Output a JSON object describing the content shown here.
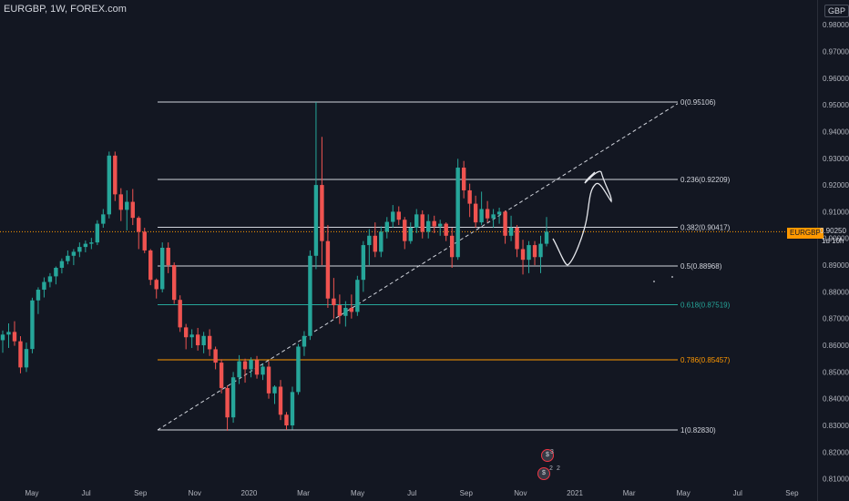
{
  "header": {
    "symbol_title": "EURGBP, 1W, FOREX.com",
    "currency": "GBP"
  },
  "price_tag": {
    "symbol": "EURGBP",
    "value": "0.90250",
    "countdown": "1d 10h"
  },
  "events": [
    {
      "icon": "currency-event-icon",
      "count": "3"
    },
    {
      "icon": "currency-event-icon",
      "count": "2"
    },
    {
      "icon": "currency-event-icon",
      "count": "2"
    }
  ],
  "colors": {
    "background": "#131722",
    "up": "#26a69a",
    "down": "#ef5350",
    "fib_white": "#d1d4dc",
    "fib_618": "#26a69a",
    "fib_786": "#ff9800",
    "price_line": "#ff9800"
  },
  "chart_data": {
    "type": "candlestick",
    "title": "EURGBP, 1W, FOREX.com",
    "ylabel": "GBP",
    "ylim": [
      0.8067,
      0.9863
    ],
    "y_ticks": [
      "0.98000",
      "0.97000",
      "0.96000",
      "0.95000",
      "0.94000",
      "0.93000",
      "0.92000",
      "0.91000",
      "0.90000",
      "0.89000",
      "0.88000",
      "0.87000",
      "0.86000",
      "0.85000",
      "0.84000",
      "0.83000",
      "0.82000",
      "0.81000"
    ],
    "x_ticks": [
      "May",
      "Jul",
      "Sep",
      "Nov",
      "2020",
      "Mar",
      "May",
      "Jul",
      "Sep",
      "Nov",
      "2021",
      "Mar",
      "May",
      "Jul",
      "Sep"
    ],
    "candles": [
      {
        "o": 0.8619,
        "h": 0.8655,
        "l": 0.8572,
        "c": 0.864
      },
      {
        "o": 0.864,
        "h": 0.8682,
        "l": 0.859,
        "c": 0.865
      },
      {
        "o": 0.865,
        "h": 0.869,
        "l": 0.8598,
        "c": 0.8615
      },
      {
        "o": 0.8615,
        "h": 0.8634,
        "l": 0.8495,
        "c": 0.8517
      },
      {
        "o": 0.8517,
        "h": 0.861,
        "l": 0.85,
        "c": 0.8586
      },
      {
        "o": 0.8586,
        "h": 0.8778,
        "l": 0.857,
        "c": 0.8768
      },
      {
        "o": 0.8768,
        "h": 0.8817,
        "l": 0.8717,
        "c": 0.8808
      },
      {
        "o": 0.8808,
        "h": 0.8854,
        "l": 0.8779,
        "c": 0.8837
      },
      {
        "o": 0.8837,
        "h": 0.887,
        "l": 0.8817,
        "c": 0.8858
      },
      {
        "o": 0.8858,
        "h": 0.8895,
        "l": 0.8828,
        "c": 0.889
      },
      {
        "o": 0.889,
        "h": 0.8925,
        "l": 0.8869,
        "c": 0.8915
      },
      {
        "o": 0.8915,
        "h": 0.8955,
        "l": 0.8903,
        "c": 0.8935
      },
      {
        "o": 0.8935,
        "h": 0.896,
        "l": 0.89,
        "c": 0.895
      },
      {
        "o": 0.895,
        "h": 0.8985,
        "l": 0.893,
        "c": 0.8968
      },
      {
        "o": 0.8968,
        "h": 0.8992,
        "l": 0.8948,
        "c": 0.898
      },
      {
        "o": 0.898,
        "h": 0.9002,
        "l": 0.896,
        "c": 0.8985
      },
      {
        "o": 0.8985,
        "h": 0.9068,
        "l": 0.8975,
        "c": 0.9055
      },
      {
        "o": 0.9055,
        "h": 0.911,
        "l": 0.904,
        "c": 0.909
      },
      {
        "o": 0.909,
        "h": 0.9325,
        "l": 0.9075,
        "c": 0.931
      },
      {
        "o": 0.931,
        "h": 0.9325,
        "l": 0.914,
        "c": 0.9165
      },
      {
        "o": 0.9165,
        "h": 0.9188,
        "l": 0.9065,
        "c": 0.9107
      },
      {
        "o": 0.9107,
        "h": 0.918,
        "l": 0.903,
        "c": 0.9137
      },
      {
        "o": 0.9137,
        "h": 0.9185,
        "l": 0.905,
        "c": 0.9077
      },
      {
        "o": 0.9077,
        "h": 0.9083,
        "l": 0.896,
        "c": 0.9025
      },
      {
        "o": 0.9025,
        "h": 0.904,
        "l": 0.8945,
        "c": 0.8955
      },
      {
        "o": 0.8955,
        "h": 0.896,
        "l": 0.8825,
        "c": 0.8845
      },
      {
        "o": 0.8845,
        "h": 0.885,
        "l": 0.8775,
        "c": 0.881
      },
      {
        "o": 0.881,
        "h": 0.8985,
        "l": 0.8798,
        "c": 0.8965
      },
      {
        "o": 0.8965,
        "h": 0.8985,
        "l": 0.887,
        "c": 0.89
      },
      {
        "o": 0.89,
        "h": 0.891,
        "l": 0.8755,
        "c": 0.877
      },
      {
        "o": 0.877,
        "h": 0.8787,
        "l": 0.865,
        "c": 0.8667
      },
      {
        "o": 0.8667,
        "h": 0.868,
        "l": 0.8585,
        "c": 0.863
      },
      {
        "o": 0.863,
        "h": 0.866,
        "l": 0.859,
        "c": 0.864
      },
      {
        "o": 0.864,
        "h": 0.8665,
        "l": 0.858,
        "c": 0.86
      },
      {
        "o": 0.86,
        "h": 0.865,
        "l": 0.857,
        "c": 0.8635
      },
      {
        "o": 0.8635,
        "h": 0.866,
        "l": 0.856,
        "c": 0.8585
      },
      {
        "o": 0.8585,
        "h": 0.8595,
        "l": 0.851,
        "c": 0.8535
      },
      {
        "o": 0.8535,
        "h": 0.8548,
        "l": 0.842,
        "c": 0.844
      },
      {
        "o": 0.844,
        "h": 0.845,
        "l": 0.828,
        "c": 0.833
      },
      {
        "o": 0.833,
        "h": 0.85,
        "l": 0.831,
        "c": 0.848
      },
      {
        "o": 0.848,
        "h": 0.8563,
        "l": 0.8455,
        "c": 0.854
      },
      {
        "o": 0.854,
        "h": 0.855,
        "l": 0.846,
        "c": 0.851
      },
      {
        "o": 0.851,
        "h": 0.8555,
        "l": 0.848,
        "c": 0.8545
      },
      {
        "o": 0.8545,
        "h": 0.856,
        "l": 0.8475,
        "c": 0.849
      },
      {
        "o": 0.849,
        "h": 0.853,
        "l": 0.847,
        "c": 0.852
      },
      {
        "o": 0.852,
        "h": 0.854,
        "l": 0.84,
        "c": 0.842
      },
      {
        "o": 0.842,
        "h": 0.845,
        "l": 0.838,
        "c": 0.8445
      },
      {
        "o": 0.8445,
        "h": 0.847,
        "l": 0.832,
        "c": 0.834
      },
      {
        "o": 0.834,
        "h": 0.835,
        "l": 0.8283,
        "c": 0.83
      },
      {
        "o": 0.83,
        "h": 0.8445,
        "l": 0.8285,
        "c": 0.8425
      },
      {
        "o": 0.8425,
        "h": 0.8605,
        "l": 0.8415,
        "c": 0.8595
      },
      {
        "o": 0.8595,
        "h": 0.8653,
        "l": 0.856,
        "c": 0.8635
      },
      {
        "o": 0.8635,
        "h": 0.8955,
        "l": 0.862,
        "c": 0.8935
      },
      {
        "o": 0.8935,
        "h": 0.951,
        "l": 0.8885,
        "c": 0.92
      },
      {
        "o": 0.92,
        "h": 0.938,
        "l": 0.89,
        "c": 0.899
      },
      {
        "o": 0.899,
        "h": 0.905,
        "l": 0.874,
        "c": 0.8775
      },
      {
        "o": 0.8775,
        "h": 0.8852,
        "l": 0.87,
        "c": 0.875
      },
      {
        "o": 0.875,
        "h": 0.879,
        "l": 0.868,
        "c": 0.871
      },
      {
        "o": 0.871,
        "h": 0.8765,
        "l": 0.867,
        "c": 0.874
      },
      {
        "o": 0.874,
        "h": 0.879,
        "l": 0.87,
        "c": 0.8725
      },
      {
        "o": 0.8725,
        "h": 0.886,
        "l": 0.871,
        "c": 0.8845
      },
      {
        "o": 0.8845,
        "h": 0.899,
        "l": 0.88,
        "c": 0.8975
      },
      {
        "o": 0.8975,
        "h": 0.9035,
        "l": 0.89,
        "c": 0.901
      },
      {
        "o": 0.901,
        "h": 0.906,
        "l": 0.893,
        "c": 0.895
      },
      {
        "o": 0.895,
        "h": 0.9045,
        "l": 0.893,
        "c": 0.9025
      },
      {
        "o": 0.9025,
        "h": 0.908,
        "l": 0.9,
        "c": 0.9062
      },
      {
        "o": 0.9062,
        "h": 0.9125,
        "l": 0.904,
        "c": 0.91
      },
      {
        "o": 0.91,
        "h": 0.912,
        "l": 0.905,
        "c": 0.907
      },
      {
        "o": 0.907,
        "h": 0.908,
        "l": 0.896,
        "c": 0.899
      },
      {
        "o": 0.899,
        "h": 0.906,
        "l": 0.898,
        "c": 0.904
      },
      {
        "o": 0.904,
        "h": 0.911,
        "l": 0.902,
        "c": 0.909
      },
      {
        "o": 0.909,
        "h": 0.9105,
        "l": 0.9,
        "c": 0.9025
      },
      {
        "o": 0.9025,
        "h": 0.909,
        "l": 0.9,
        "c": 0.9065
      },
      {
        "o": 0.9065,
        "h": 0.9085,
        "l": 0.902,
        "c": 0.9045
      },
      {
        "o": 0.9045,
        "h": 0.907,
        "l": 0.901,
        "c": 0.9055
      },
      {
        "o": 0.9055,
        "h": 0.906,
        "l": 0.899,
        "c": 0.901
      },
      {
        "o": 0.901,
        "h": 0.904,
        "l": 0.889,
        "c": 0.893
      },
      {
        "o": 0.893,
        "h": 0.9298,
        "l": 0.892,
        "c": 0.9265
      },
      {
        "o": 0.9265,
        "h": 0.929,
        "l": 0.915,
        "c": 0.918
      },
      {
        "o": 0.918,
        "h": 0.9205,
        "l": 0.908,
        "c": 0.913
      },
      {
        "o": 0.913,
        "h": 0.916,
        "l": 0.904,
        "c": 0.906
      },
      {
        "o": 0.906,
        "h": 0.9175,
        "l": 0.905,
        "c": 0.911
      },
      {
        "o": 0.911,
        "h": 0.914,
        "l": 0.906,
        "c": 0.9075
      },
      {
        "o": 0.9075,
        "h": 0.911,
        "l": 0.904,
        "c": 0.909
      },
      {
        "o": 0.909,
        "h": 0.9115,
        "l": 0.9055,
        "c": 0.91
      },
      {
        "o": 0.91,
        "h": 0.9105,
        "l": 0.898,
        "c": 0.901
      },
      {
        "o": 0.901,
        "h": 0.9085,
        "l": 0.899,
        "c": 0.904
      },
      {
        "o": 0.904,
        "h": 0.905,
        "l": 0.893,
        "c": 0.896
      },
      {
        "o": 0.896,
        "h": 0.8995,
        "l": 0.8865,
        "c": 0.892
      },
      {
        "o": 0.892,
        "h": 0.899,
        "l": 0.887,
        "c": 0.8975
      },
      {
        "o": 0.8975,
        "h": 0.899,
        "l": 0.89,
        "c": 0.893
      },
      {
        "o": 0.893,
        "h": 0.901,
        "l": 0.887,
        "c": 0.898
      },
      {
        "o": 0.898,
        "h": 0.908,
        "l": 0.897,
        "c": 0.9025
      }
    ],
    "fib_levels": [
      {
        "label": "0(0.95106)",
        "price": 0.95106,
        "color": "#d1d4dc"
      },
      {
        "label": "0.236(0.92209)",
        "price": 0.92209,
        "color": "#d1d4dc"
      },
      {
        "label": "0.382(0.90417)",
        "price": 0.90417,
        "color": "#d1d4dc"
      },
      {
        "label": "0.5(0.88968)",
        "price": 0.88968,
        "color": "#d1d4dc"
      },
      {
        "label": "0.618(0.87519)",
        "price": 0.87519,
        "color": "#26a69a"
      },
      {
        "label": "0.786(0.85457)",
        "price": 0.85457,
        "color": "#ff9800"
      },
      {
        "label": "1(0.82830)",
        "price": 0.8283,
        "color": "#d1d4dc"
      }
    ],
    "trendline": {
      "from": 0.8283,
      "to": 0.9505
    },
    "last_price": 0.9025,
    "grid": false,
    "legend": "none"
  }
}
